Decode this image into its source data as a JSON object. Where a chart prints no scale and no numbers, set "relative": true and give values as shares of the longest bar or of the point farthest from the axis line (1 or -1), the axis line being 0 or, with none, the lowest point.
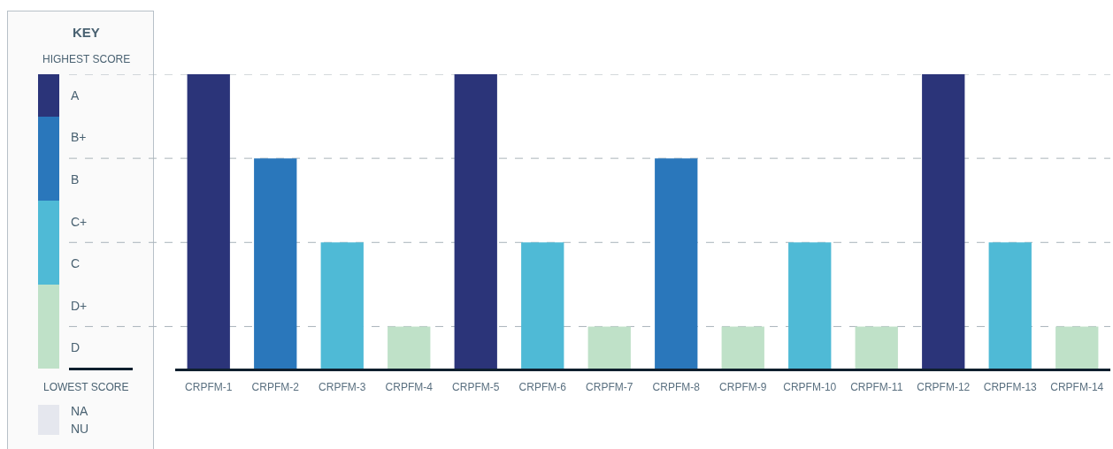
{
  "chart_data": {
    "type": "bar",
    "categories": [
      "CRPFM-1",
      "CRPFM-2",
      "CRPFM-3",
      "CRPFM-4",
      "CRPFM-5",
      "CRPFM-6",
      "CRPFM-7",
      "CRPFM-8",
      "CRPFM-9",
      "CRPFM-10",
      "CRPFM-11",
      "CRPFM-12",
      "CRPFM-13",
      "CRPFM-14"
    ],
    "values": [
      1,
      0.714,
      0.429,
      0.143,
      1,
      0.429,
      0.143,
      0.714,
      0.143,
      0.429,
      0.143,
      1,
      0.429,
      0.143
    ],
    "colors": [
      "#2b3479",
      "#2a77bb",
      "#4fbad6",
      "#bfe1c8",
      "#2b3479",
      "#4fbad6",
      "#bfe1c8",
      "#2a77bb",
      "#bfe1c8",
      "#4fbad6",
      "#bfe1c8",
      "#2b3479",
      "#4fbad6",
      "#bfe1c8"
    ],
    "relative": true,
    "grid": true,
    "annotations": [
      "KEY",
      "HIGHEST SCORE",
      "A",
      "B+",
      "B",
      "C+",
      "C",
      "D+",
      "D",
      "LOWEST SCORE",
      "NA",
      "NU"
    ]
  }
}
